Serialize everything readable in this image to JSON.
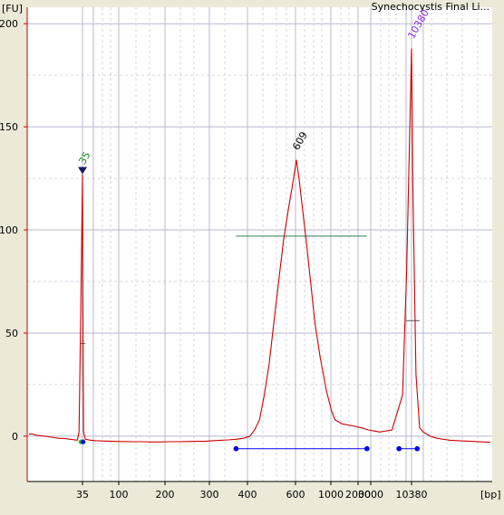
{
  "window": {
    "title": "Synechocystis Final Li..."
  },
  "chart_data": {
    "type": "line",
    "title": "Synechocystis Final Li...",
    "ylabel": "[FU]",
    "xlabel": "[bp]",
    "ylim": [
      -22,
      208
    ],
    "y_ticks": [
      0,
      50,
      100,
      150,
      200
    ],
    "x_tick_labels": [
      "35",
      "100",
      "200",
      "300",
      "400",
      "600",
      "1000",
      "2000",
      "3000",
      "10380"
    ],
    "x_tick_labels_bp": [
      35,
      100,
      200,
      300,
      400,
      600,
      1000,
      2000,
      3000,
      10380
    ],
    "grid": true,
    "line_color": "#cc0000",
    "plot_background": "#ffffff",
    "peaks": [
      {
        "label": "35",
        "bp": 35,
        "fu": 127,
        "color": "#1a8a1a"
      },
      {
        "label": "609",
        "bp": 609,
        "fu": 134,
        "color": "#000000"
      },
      {
        "label": "10380",
        "bp": 10380,
        "fu": 188,
        "color": "#8a2be2"
      }
    ],
    "series": [
      {
        "values_fu": [
          1,
          1,
          0.5,
          0.3,
          0,
          -0.5,
          -1,
          -1.2,
          -1.5,
          -2,
          2,
          60,
          127,
          45,
          2,
          -1.5,
          -2,
          -2.2,
          -2.4,
          -2.5,
          -2.6,
          -2.7,
          -2.7,
          -2.8,
          -2.8,
          -2.7,
          -2.7,
          -2.6,
          -2.5,
          -2.5,
          -2.2,
          -2,
          -1.8,
          -1.5,
          -1,
          0,
          3,
          8,
          20,
          35,
          55,
          75,
          95,
          110,
          120,
          128,
          132,
          134,
          131,
          125,
          110,
          95,
          75,
          55,
          38,
          22,
          12,
          8,
          6,
          5,
          4,
          3,
          2.5,
          2,
          3,
          20,
          80,
          188,
          120,
          30,
          4,
          2,
          0,
          -1,
          -2,
          -2.5,
          -3
        ],
        "bp": [
          4,
          6,
          8,
          10,
          13,
          17,
          21,
          25,
          28,
          32,
          33,
          34,
          35,
          36,
          37,
          40,
          50,
          60,
          75,
          90,
          110,
          130,
          150,
          170,
          190,
          210,
          230,
          250,
          270,
          290,
          310,
          330,
          350,
          370,
          390,
          410,
          430,
          450,
          470,
          490,
          510,
          530,
          550,
          570,
          585,
          596,
          603,
          609,
          620,
          640,
          680,
          720,
          770,
          820,
          880,
          950,
          1030,
          1150,
          1400,
          1800,
          2300,
          2800,
          3200,
          3500,
          4200,
          4800,
          5500,
          10380,
          11500,
          14000,
          17000,
          20000,
          25000,
          30000,
          40000,
          55000,
          70000
        ]
      }
    ],
    "region_markers": [
      {
        "bp_start": 370,
        "bp_end": 2700,
        "fu": -3,
        "color": "#0000ee"
      },
      {
        "bp_start": 4600,
        "bp_end": 15000,
        "fu": -3,
        "color": "#0000ee"
      }
    ],
    "height_indicator": {
      "bp_start": 370,
      "bp_end": 2700,
      "fu": 97,
      "color": "#2e7d4f"
    },
    "lower_marker_points": [
      {
        "bp": 34,
        "fu": -1,
        "color": "#22cc22"
      },
      {
        "bp": 36,
        "fu": -1,
        "color": "#0000ee"
      }
    ]
  }
}
